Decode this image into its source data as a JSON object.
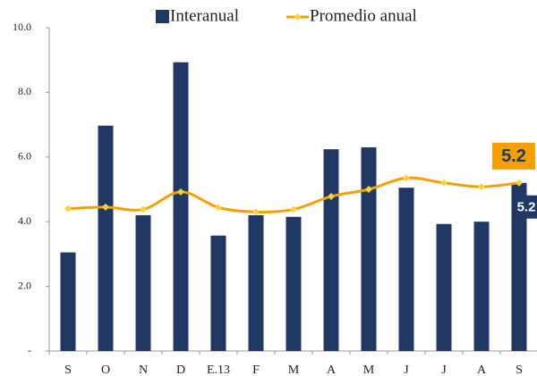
{
  "chart_data": {
    "type": "bar",
    "categories": [
      "S",
      "O",
      "N",
      "D",
      "E.13",
      "F",
      "M",
      "A",
      "M",
      "J",
      "J",
      "A",
      "S"
    ],
    "series": [
      {
        "name": "Interanual",
        "type": "bar",
        "color": "#1f3864",
        "values": [
          3.05,
          6.97,
          4.2,
          8.93,
          3.57,
          4.2,
          4.15,
          6.24,
          6.3,
          5.05,
          3.93,
          4.0,
          5.2
        ],
        "value_labels": [
          null,
          null,
          null,
          null,
          null,
          null,
          null,
          null,
          null,
          null,
          null,
          null,
          "5.2"
        ]
      },
      {
        "name": "Promedio anual",
        "type": "line",
        "color": "#f5a000",
        "marker_color": "#ffd23c",
        "values": [
          4.4,
          4.45,
          4.38,
          4.92,
          4.44,
          4.3,
          4.38,
          4.78,
          5.0,
          5.35,
          5.2,
          5.08,
          5.2
        ],
        "value_labels": [
          null,
          null,
          null,
          null,
          null,
          null,
          null,
          null,
          null,
          null,
          null,
          null,
          "5.2"
        ]
      }
    ],
    "ylim": [
      0,
      10
    ],
    "yticks": [
      {
        "value": 0,
        "label": "-"
      },
      {
        "value": 2,
        "label": "2.0"
      },
      {
        "value": 4,
        "label": "4.0"
      },
      {
        "value": 6,
        "label": "6.0"
      },
      {
        "value": 8,
        "label": "8.0"
      },
      {
        "value": 10,
        "label": "10.0"
      }
    ],
    "grid": false
  }
}
